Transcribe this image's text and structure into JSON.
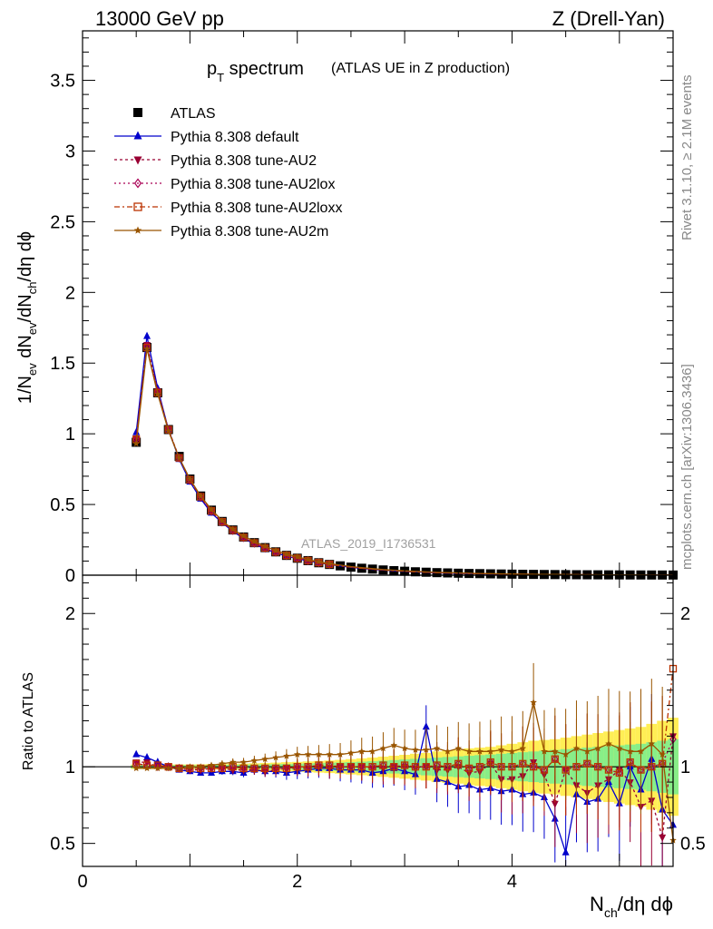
{
  "header": {
    "left": "13000 GeV pp",
    "right": "Z (Drell-Yan)"
  },
  "title_main": "p",
  "title_sub": "T",
  "title_rest": " spectrum",
  "title_note": "(ATLAS UE in Z production)",
  "watermark": "ATLAS_2019_I1736531",
  "side_rivet": "Rivet 3.1.10, ≥ 2.1M events",
  "side_mcplots": "mcplots.cern.ch [arXiv:1306.3436]",
  "ratio_ylabel": "Ratio to ATLAS",
  "top_ylabel": {
    "p1": "1/N",
    "s1": "ev",
    "p2": " dN",
    "s2": "ev",
    "p3": "/dN",
    "s3": "ch",
    "p4": "/dη dϕ"
  },
  "xlabel": {
    "p1": "N",
    "s1": "ch",
    "p2": "/dη dϕ"
  },
  "legend": [
    {
      "label": "ATLAS",
      "color": "#000000",
      "marker": "square-filled"
    },
    {
      "label": "Pythia 8.308 default",
      "color": "#0000cc",
      "marker": "triangle-up"
    },
    {
      "label": "Pythia 8.308 tune-AU2",
      "color": "#990033",
      "marker": "triangle-down"
    },
    {
      "label": "Pythia 8.308 tune-AU2lox",
      "color": "#aa0055",
      "marker": "diamond-open"
    },
    {
      "label": "Pythia 8.308 tune-AU2loxx",
      "color": "#bb3300",
      "marker": "square-open"
    },
    {
      "label": "Pythia 8.308 tune-AU2m",
      "color": "#995500",
      "marker": "star"
    }
  ],
  "chart_data": [
    {
      "type": "line",
      "panel": "main",
      "xlim": [
        0,
        5.5
      ],
      "ylim": [
        0,
        3.85
      ],
      "yticks": [
        0,
        0.5,
        1,
        1.5,
        2,
        2.5,
        3,
        3.5
      ],
      "ytick_labels": [
        "0",
        "0.5",
        "1",
        "1.5",
        "2",
        "2.5",
        "3",
        "3.5"
      ],
      "x": [
        0.5,
        0.6,
        0.7,
        0.8,
        0.9,
        1.0,
        1.1,
        1.2,
        1.3,
        1.4,
        1.5,
        1.6,
        1.7,
        1.8,
        1.9,
        2.0,
        2.1,
        2.2,
        2.3,
        2.4,
        2.5,
        2.6,
        2.7,
        2.8,
        2.9,
        3.0,
        3.1,
        3.2,
        3.3,
        3.4,
        3.5,
        3.6,
        3.7,
        3.8,
        3.9,
        4.0,
        4.1,
        4.2,
        4.3,
        4.4,
        4.5,
        4.6,
        4.7,
        4.8,
        4.9,
        5.0,
        5.1,
        5.2,
        5.3,
        5.4,
        5.5
      ],
      "series": [
        {
          "name": "ATLAS",
          "values": [
            0.94,
            1.61,
            1.29,
            1.03,
            0.84,
            0.68,
            0.56,
            0.46,
            0.38,
            0.32,
            0.27,
            0.23,
            0.195,
            0.165,
            0.14,
            0.12,
            0.103,
            0.088,
            0.076,
            0.066,
            0.057,
            0.049,
            0.043,
            0.037,
            0.032,
            0.028,
            0.024,
            0.021,
            0.018,
            0.016,
            0.014,
            0.012,
            0.011,
            0.0095,
            0.0083,
            0.0073,
            0.0064,
            0.0056,
            0.0049,
            0.0043,
            0.0038,
            0.0033,
            0.0029,
            0.0026,
            0.0023,
            0.002,
            0.0018,
            0.0016,
            0.0014,
            0.0012,
            0.0011
          ]
        },
        {
          "name": "Pythia 8.308 default",
          "values": [
            1.01,
            1.69,
            1.32,
            1.03,
            0.82,
            0.66,
            0.54,
            0.44,
            0.37,
            0.31,
            0.26,
            0.22,
            0.185,
            0.158,
            0.135,
            0.117,
            0.101,
            0.087,
            0.075,
            0.065,
            0.056,
            0.048,
            0.041,
            0.036,
            0.031,
            0.027,
            0.023,
            0.02,
            0.017,
            0.015,
            0.013,
            0.011,
            0.0097,
            0.0085,
            0.0074,
            0.0064,
            0.0056,
            0.0048,
            0.0042,
            0.0036,
            0.0031,
            0.0027,
            0.0024,
            0.0021,
            0.0018,
            0.0016,
            0.0014,
            0.0012,
            0.0011,
            0.0009,
            0.0008
          ]
        },
        {
          "name": "Pythia 8.308 tune-AU2",
          "values": [
            0.97,
            1.63,
            1.3,
            1.03,
            0.83,
            0.67,
            0.55,
            0.45,
            0.375,
            0.315,
            0.265,
            0.225,
            0.19,
            0.162,
            0.138,
            0.119,
            0.102,
            0.088,
            0.076,
            0.066,
            0.057,
            0.049,
            0.042,
            0.037,
            0.032,
            0.028,
            0.024,
            0.021,
            0.018,
            0.016,
            0.014,
            0.012,
            0.011,
            0.0094,
            0.0082,
            0.0072,
            0.0063,
            0.0055,
            0.0048,
            0.0042,
            0.0037,
            0.0032,
            0.0028,
            0.0025,
            0.0022,
            0.0019,
            0.0017,
            0.0015,
            0.0013,
            0.0012,
            0.001
          ]
        },
        {
          "name": "Pythia 8.308 tune-AU2lox",
          "values": [
            0.96,
            1.62,
            1.3,
            1.03,
            0.83,
            0.675,
            0.555,
            0.455,
            0.378,
            0.318,
            0.268,
            0.228,
            0.193,
            0.164,
            0.14,
            0.12,
            0.103,
            0.089,
            0.077,
            0.066,
            0.057,
            0.049,
            0.043,
            0.037,
            0.032,
            0.028,
            0.024,
            0.021,
            0.018,
            0.016,
            0.014,
            0.012,
            0.011,
            0.0096,
            0.0084,
            0.0073,
            0.0064,
            0.0056,
            0.0049,
            0.0043,
            0.0038,
            0.0033,
            0.0029,
            0.0026,
            0.0023,
            0.002,
            0.0018,
            0.0016,
            0.0014,
            0.0012,
            0.0011
          ]
        },
        {
          "name": "Pythia 8.308 tune-AU2loxx",
          "values": [
            0.96,
            1.61,
            1.29,
            1.03,
            0.83,
            0.675,
            0.555,
            0.455,
            0.378,
            0.318,
            0.268,
            0.228,
            0.193,
            0.164,
            0.14,
            0.12,
            0.103,
            0.089,
            0.077,
            0.066,
            0.057,
            0.049,
            0.043,
            0.037,
            0.032,
            0.028,
            0.024,
            0.021,
            0.018,
            0.016,
            0.014,
            0.012,
            0.011,
            0.0096,
            0.0084,
            0.0073,
            0.0064,
            0.0056,
            0.0049,
            0.0043,
            0.0038,
            0.0033,
            0.0029,
            0.0026,
            0.0023,
            0.002,
            0.0018,
            0.0016,
            0.0014,
            0.0012,
            0.0011
          ]
        },
        {
          "name": "Pythia 8.308 tune-AU2m",
          "values": [
            0.93,
            1.6,
            1.28,
            1.02,
            0.83,
            0.68,
            0.56,
            0.465,
            0.385,
            0.325,
            0.278,
            0.238,
            0.205,
            0.175,
            0.15,
            0.13,
            0.111,
            0.095,
            0.082,
            0.071,
            0.061,
            0.053,
            0.046,
            0.04,
            0.035,
            0.031,
            0.027,
            0.023,
            0.02,
            0.018,
            0.016,
            0.014,
            0.012,
            0.011,
            0.0095,
            0.0083,
            0.0073,
            0.0064,
            0.0056,
            0.0049,
            0.0043,
            0.0038,
            0.0033,
            0.0029,
            0.0026,
            0.0023,
            0.002,
            0.0018,
            0.0016,
            0.0014,
            0.0012
          ]
        }
      ]
    },
    {
      "type": "line",
      "panel": "ratio",
      "xlim": [
        0,
        5.5
      ],
      "ylim": [
        0.35,
        2.25
      ],
      "yticks": [
        0.5,
        1,
        2
      ],
      "ytick_labels": [
        "0.5",
        "1",
        "2"
      ],
      "xticks": [
        0,
        2,
        4
      ],
      "xtick_labels": [
        "0",
        "2",
        "4"
      ],
      "x": [
        0.5,
        0.6,
        0.7,
        0.8,
        0.9,
        1.0,
        1.1,
        1.2,
        1.3,
        1.4,
        1.5,
        1.6,
        1.7,
        1.8,
        1.9,
        2.0,
        2.1,
        2.2,
        2.3,
        2.4,
        2.5,
        2.6,
        2.7,
        2.8,
        2.9,
        3.0,
        3.1,
        3.2,
        3.3,
        3.4,
        3.5,
        3.6,
        3.7,
        3.8,
        3.9,
        4.0,
        4.1,
        4.2,
        4.3,
        4.4,
        4.5,
        4.6,
        4.7,
        4.8,
        4.9,
        5.0,
        5.1,
        5.2,
        5.3,
        5.4,
        5.5
      ],
      "band_green": [
        0.01,
        0.01,
        0.01,
        0.01,
        0.01,
        0.01,
        0.01,
        0.012,
        0.012,
        0.013,
        0.014,
        0.015,
        0.016,
        0.017,
        0.018,
        0.02,
        0.022,
        0.024,
        0.026,
        0.028,
        0.03,
        0.033,
        0.036,
        0.04,
        0.044,
        0.048,
        0.052,
        0.056,
        0.06,
        0.064,
        0.068,
        0.072,
        0.076,
        0.08,
        0.085,
        0.09,
        0.095,
        0.1,
        0.105,
        0.11,
        0.115,
        0.12,
        0.125,
        0.13,
        0.135,
        0.14,
        0.145,
        0.15,
        0.16,
        0.17,
        0.18
      ],
      "band_yellow": [
        0.015,
        0.015,
        0.015,
        0.015,
        0.015,
        0.015,
        0.016,
        0.017,
        0.018,
        0.02,
        0.021,
        0.023,
        0.025,
        0.027,
        0.03,
        0.032,
        0.035,
        0.038,
        0.041,
        0.045,
        0.05,
        0.055,
        0.06,
        0.066,
        0.072,
        0.078,
        0.085,
        0.09,
        0.1,
        0.105,
        0.11,
        0.12,
        0.125,
        0.13,
        0.14,
        0.15,
        0.16,
        0.17,
        0.175,
        0.18,
        0.19,
        0.2,
        0.21,
        0.22,
        0.23,
        0.24,
        0.25,
        0.26,
        0.28,
        0.3,
        0.32
      ],
      "series": [
        {
          "name": "Pythia 8.308 default",
          "values": [
            1.08,
            1.06,
            1.03,
            1.0,
            0.98,
            0.97,
            0.96,
            0.96,
            0.97,
            0.97,
            0.96,
            0.98,
            0.97,
            0.97,
            0.96,
            0.97,
            0.98,
            0.99,
            0.99,
            0.98,
            0.98,
            0.98,
            0.96,
            0.97,
            0.99,
            0.97,
            0.95,
            1.26,
            0.92,
            0.9,
            0.87,
            0.88,
            0.85,
            0.86,
            0.84,
            0.85,
            0.82,
            0.83,
            0.8,
            0.66,
            0.44,
            0.82,
            0.77,
            0.79,
            0.9,
            0.76,
            1.0,
            0.85,
            1.05,
            0.72,
            0.62
          ]
        },
        {
          "name": "Pythia 8.308 tune-AU2",
          "values": [
            1.03,
            1.03,
            1.0,
            1.0,
            0.99,
            0.98,
            0.98,
            0.99,
            0.99,
            0.98,
            0.98,
            0.98,
            0.97,
            0.98,
            0.99,
            0.99,
            0.99,
            1.0,
            0.99,
            1.0,
            1.0,
            1.0,
            0.99,
            0.99,
            1.0,
            1.0,
            0.99,
            1.0,
            0.98,
            0.98,
            1.0,
            0.96,
            0.97,
            1.02,
            0.92,
            0.92,
            0.94,
            1.03,
            0.95,
            0.76,
            0.98,
            0.88,
            0.83,
            0.88,
            0.92,
            0.98,
            0.9,
            0.74,
            0.78,
            0.54,
            1.2
          ]
        },
        {
          "name": "Pythia 8.308 tune-AU2lox",
          "values": [
            1.02,
            1.01,
            1.01,
            1.0,
            0.99,
            0.99,
            0.99,
            0.99,
            0.99,
            1.0,
            0.99,
            0.99,
            0.99,
            0.99,
            0.99,
            1.0,
            1.0,
            1.01,
            1.01,
            1.0,
            1.0,
            1.0,
            1.0,
            1.01,
            1.0,
            1.01,
            1.0,
            1.0,
            1.01,
            1.0,
            1.02,
            0.99,
            1.0,
            1.03,
            1.0,
            1.0,
            1.02,
            1.0,
            0.98,
            1.05,
            0.98,
            1.0,
            1.02,
            1.0,
            0.98,
            0.96,
            1.03,
            0.98,
            1.0,
            1.02,
            1.18
          ]
        },
        {
          "name": "Pythia 8.308 tune-AU2loxx",
          "values": [
            1.02,
            1.01,
            1.01,
            1.0,
            0.99,
            0.99,
            0.99,
            0.99,
            0.99,
            1.0,
            0.99,
            0.99,
            0.99,
            0.99,
            0.99,
            1.0,
            1.0,
            1.01,
            1.01,
            1.0,
            1.0,
            1.0,
            1.0,
            1.01,
            1.0,
            1.01,
            1.0,
            1.0,
            1.01,
            1.0,
            1.02,
            0.99,
            1.0,
            1.03,
            1.0,
            1.0,
            1.02,
            1.0,
            0.98,
            1.05,
            0.98,
            1.0,
            1.02,
            1.0,
            0.98,
            0.96,
            1.03,
            0.98,
            1.0,
            1.02,
            1.64
          ]
        },
        {
          "name": "Pythia 8.308 tune-AU2m",
          "values": [
            0.99,
            0.99,
            0.99,
            0.99,
            0.99,
            1.0,
            1.0,
            1.01,
            1.02,
            1.03,
            1.03,
            1.04,
            1.05,
            1.06,
            1.07,
            1.08,
            1.08,
            1.08,
            1.08,
            1.08,
            1.09,
            1.1,
            1.1,
            1.12,
            1.14,
            1.12,
            1.11,
            1.11,
            1.12,
            1.1,
            1.12,
            1.1,
            1.1,
            1.1,
            1.11,
            1.1,
            1.12,
            1.42,
            1.1,
            1.1,
            1.08,
            1.12,
            1.1,
            1.12,
            1.15,
            1.12,
            1.1,
            1.1,
            1.15,
            1.08,
            0.52
          ]
        }
      ]
    }
  ]
}
